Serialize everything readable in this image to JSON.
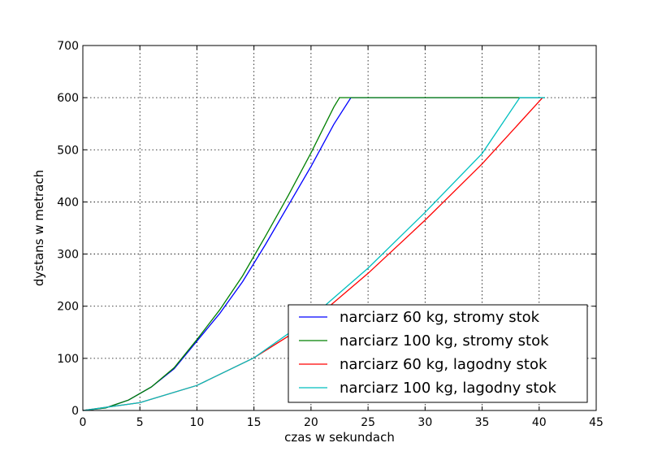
{
  "chart_data": {
    "type": "line",
    "title": "",
    "xlabel": "czas w sekundach",
    "ylabel": "dystans w metrach",
    "xlim": [
      0,
      45
    ],
    "ylim": [
      0,
      700
    ],
    "xticks": [
      0,
      5,
      10,
      15,
      20,
      25,
      30,
      35,
      40,
      45
    ],
    "yticks": [
      0,
      100,
      200,
      300,
      400,
      500,
      600,
      700
    ],
    "grid": true,
    "legend_position": "lower-right",
    "series": [
      {
        "name": "narciarz 60 kg, stromy stok",
        "color": "#0000ff",
        "x": [
          0,
          2,
          4,
          6,
          8,
          10,
          12,
          14,
          16,
          18,
          20,
          22,
          23.5,
          40.5
        ],
        "y": [
          0,
          5,
          20,
          45,
          80,
          133,
          186,
          247,
          318,
          393,
          468,
          549,
          600,
          600
        ]
      },
      {
        "name": "narciarz 100 kg, stromy stok",
        "color": "#008000",
        "x": [
          0,
          2,
          4,
          6,
          8,
          10,
          12,
          14,
          16,
          18,
          20,
          22,
          22.5,
          40.5
        ],
        "y": [
          0,
          5,
          20,
          45,
          82,
          136,
          193,
          258,
          334,
          412,
          494,
          582,
          600,
          600
        ]
      },
      {
        "name": "narciarz 60 kg, lagodny stok",
        "color": "#ff0000",
        "x": [
          0,
          5,
          10,
          15,
          20,
          25,
          30,
          35,
          40.3
        ],
        "y": [
          0,
          15,
          48,
          101,
          170,
          263,
          365,
          473,
          600
        ]
      },
      {
        "name": "narciarz 100 kg, lagodny stok",
        "color": "#00bfbf",
        "x": [
          0,
          5,
          10,
          15,
          20,
          25,
          30,
          35,
          38.3,
          40.5
        ],
        "y": [
          0,
          15,
          48,
          101,
          178,
          273,
          380,
          493,
          600,
          600
        ]
      }
    ]
  }
}
